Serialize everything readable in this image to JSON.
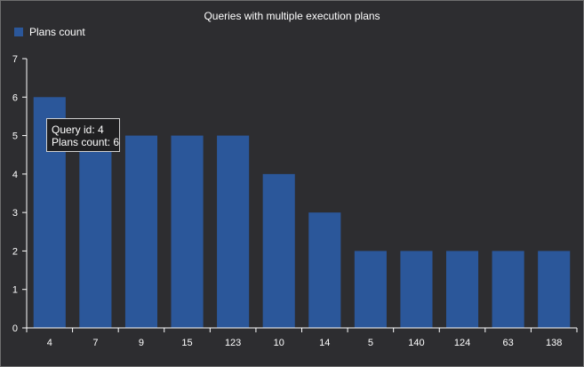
{
  "chart_data": {
    "type": "bar",
    "title": "Queries with multiple execution plans",
    "xlabel": "",
    "ylabel": "",
    "categories": [
      "4",
      "7",
      "9",
      "15",
      "123",
      "10",
      "14",
      "5",
      "140",
      "124",
      "63",
      "138"
    ],
    "series": [
      {
        "name": "Plans count",
        "values": [
          6,
          5,
          5,
          5,
          5,
          4,
          3,
          2,
          2,
          2,
          2,
          2
        ]
      }
    ],
    "ylim": [
      0,
      7
    ],
    "yticks": [
      "0",
      "1",
      "2",
      "3",
      "4",
      "5",
      "6",
      "7"
    ],
    "grid": false,
    "legend_position": "top-left"
  },
  "tooltip": {
    "line1": "Query id: 4",
    "line2": "Plans count: 6"
  },
  "colors": {
    "background": "#2d2d30",
    "bar": "#2b579a",
    "axis": "#ffffff",
    "text": "#ffffff"
  }
}
